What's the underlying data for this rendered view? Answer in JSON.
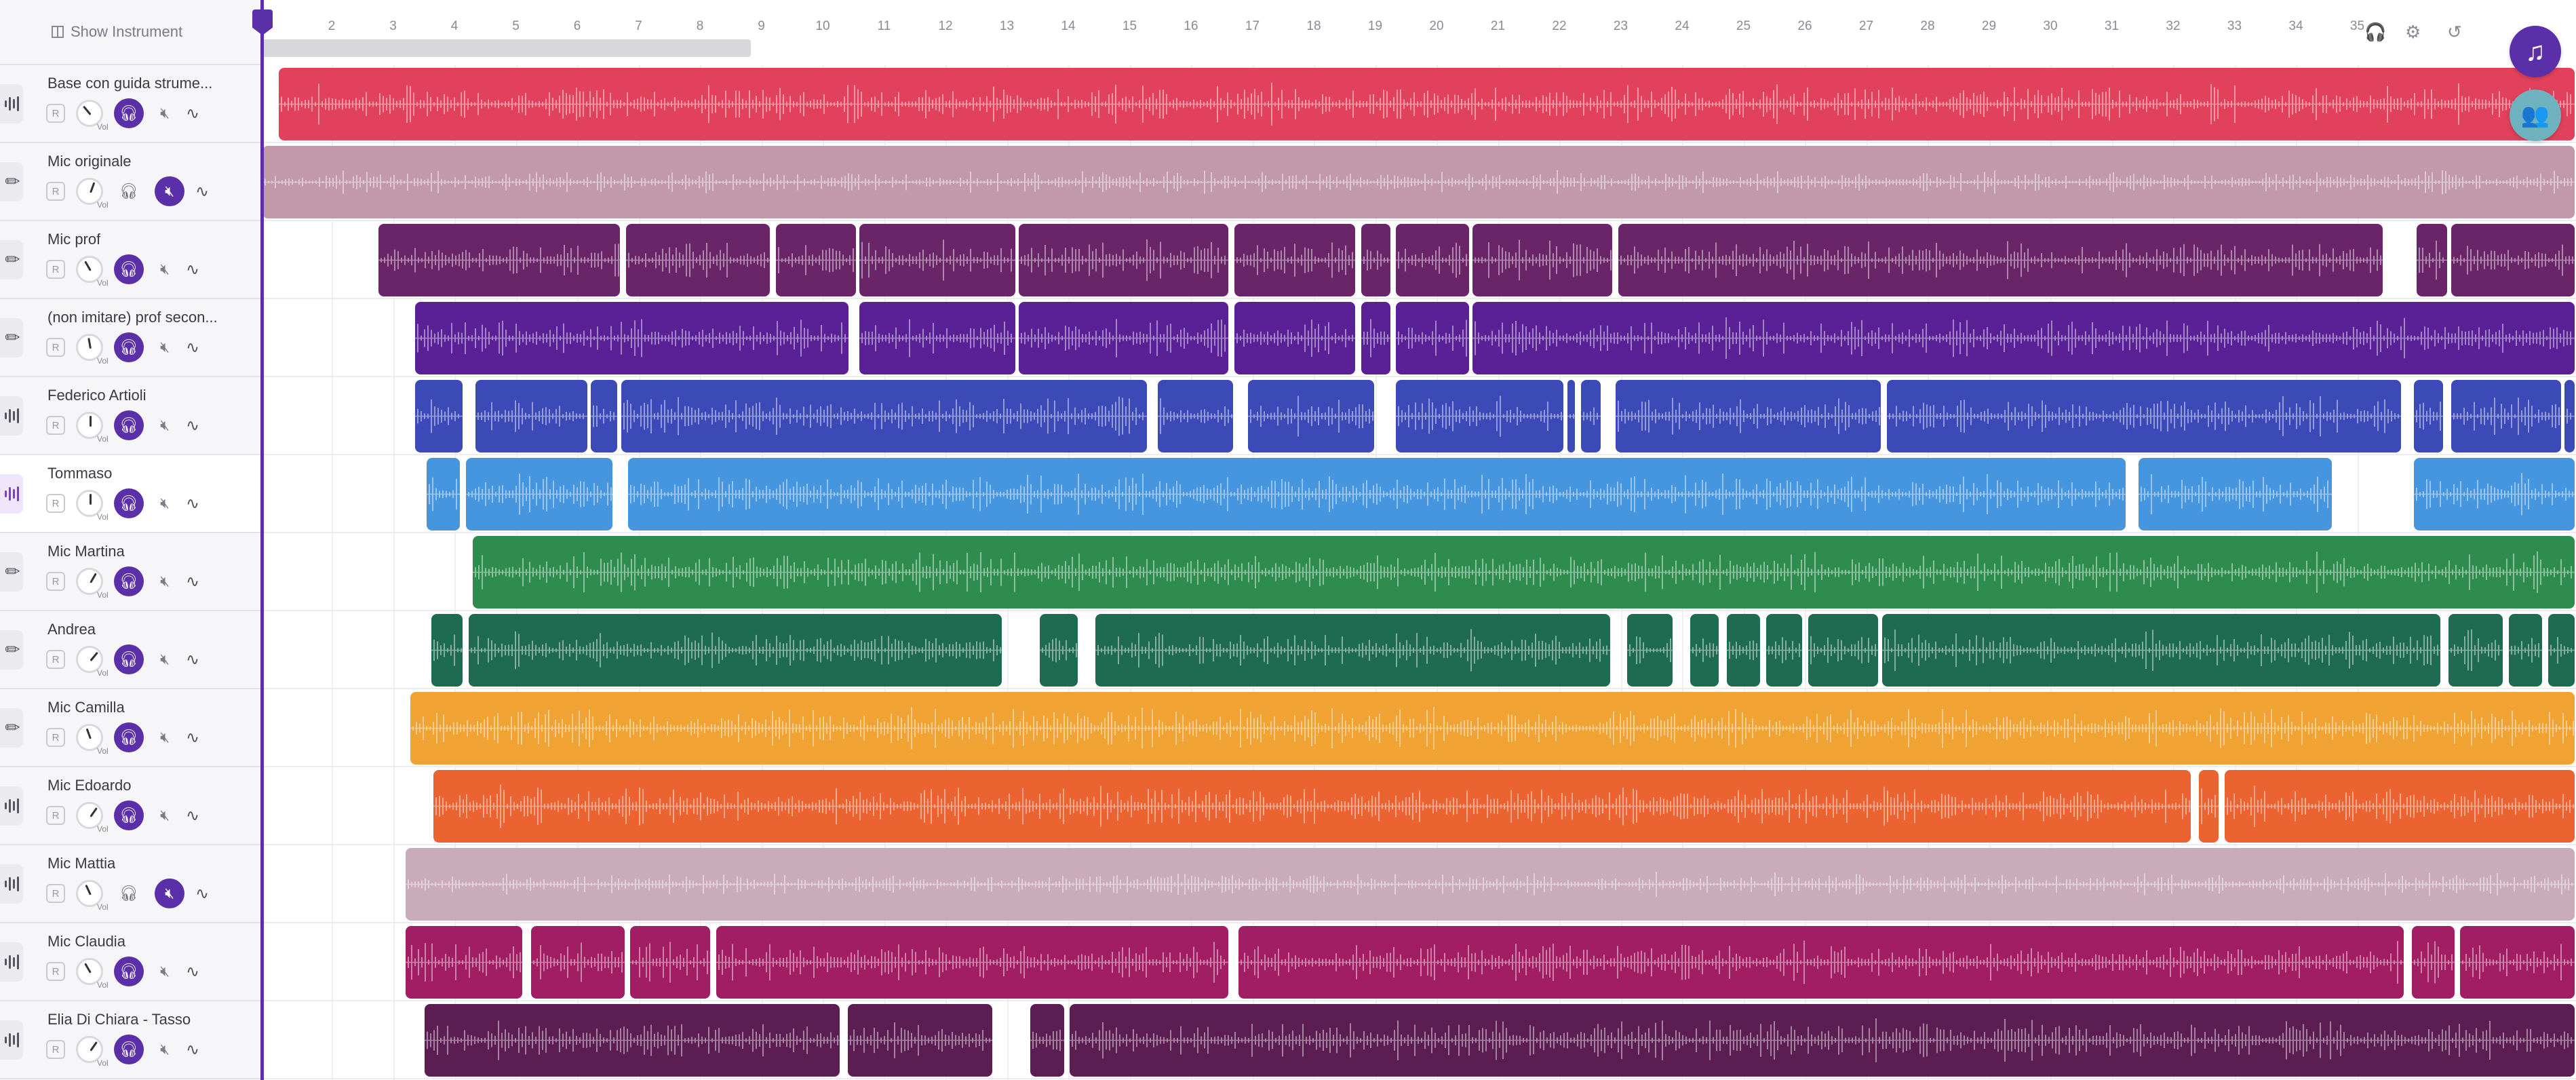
{
  "sidebar": {
    "show_instrument_label": "Show Instrument"
  },
  "ruler": {
    "ticks": [
      "2",
      "3",
      "4",
      "5",
      "6",
      "7",
      "8",
      "9",
      "10",
      "11",
      "12",
      "13",
      "14",
      "15",
      "16",
      "17",
      "18",
      "19",
      "20",
      "21",
      "22",
      "23",
      "24",
      "25",
      "26",
      "27",
      "28",
      "29",
      "30",
      "31",
      "32",
      "33",
      "34",
      "35"
    ]
  },
  "icons": {
    "headphones": "headphones-icon",
    "settings": "gear-icon",
    "undo": "undo-icon",
    "music": "music-note-icon",
    "collab": "collaborators-icon"
  },
  "tracks": [
    {
      "name": "Base con guida strume...",
      "type": "audio",
      "record": "R",
      "vol_label": "Vol",
      "solo": true,
      "muted": false,
      "color": "#e2415b",
      "clips": [
        [
          0.007,
          1
        ]
      ]
    },
    {
      "name": "Mic originale",
      "type": "mic",
      "record": "R",
      "vol_label": "Vol",
      "solo": false,
      "muted": true,
      "color": "#c299a9",
      "clips": [
        [
          0,
          1
        ]
      ]
    },
    {
      "name": "Mic prof",
      "type": "mic",
      "record": "R",
      "vol_label": "Vol",
      "solo": true,
      "muted": false,
      "color": "#6a2468",
      "clips": [
        [
          0.05,
          0.155
        ],
        [
          0.157,
          0.22
        ],
        [
          0.222,
          0.257
        ],
        [
          0.258,
          0.326
        ],
        [
          0.327,
          0.418
        ],
        [
          0.42,
          0.473
        ],
        [
          0.475,
          0.488
        ],
        [
          0.49,
          0.522
        ],
        [
          0.523,
          0.584
        ],
        [
          0.586,
          0.917
        ],
        [
          0.931,
          0.945
        ],
        [
          0.946,
          1
        ]
      ]
    },
    {
      "name": "(non imitare) prof secon...",
      "type": "mic",
      "record": "R",
      "vol_label": "Vol",
      "solo": true,
      "muted": false,
      "color": "#5a2196",
      "clips": [
        [
          0.066,
          0.254
        ],
        [
          0.258,
          0.326
        ],
        [
          0.327,
          0.418
        ],
        [
          0.42,
          0.473
        ],
        [
          0.475,
          0.488
        ],
        [
          0.49,
          0.522
        ],
        [
          0.523,
          1
        ]
      ]
    },
    {
      "name": "Federico Artioli",
      "type": "audio",
      "record": "R",
      "vol_label": "Vol",
      "solo": true,
      "muted": false,
      "color": "#3c4ab8",
      "clips": [
        [
          0.066,
          0.087
        ],
        [
          0.092,
          0.141
        ],
        [
          0.142,
          0.154
        ],
        [
          0.155,
          0.383
        ],
        [
          0.387,
          0.42
        ],
        [
          0.426,
          0.481
        ],
        [
          0.49,
          0.563
        ],
        [
          0.564,
          0.568
        ],
        [
          0.57,
          0.579
        ],
        [
          0.585,
          0.7
        ],
        [
          0.702,
          0.925
        ],
        [
          0.93,
          0.943
        ],
        [
          0.946,
          0.994
        ],
        [
          0.995,
          1
        ]
      ]
    },
    {
      "name": "Tommaso",
      "type": "audio",
      "record": "R",
      "vol_label": "Vol",
      "solo": true,
      "muted": false,
      "color": "#4696df",
      "selected": true,
      "clips": [
        [
          0.071,
          0.086
        ],
        [
          0.088,
          0.152
        ],
        [
          0.158,
          0.806
        ],
        [
          0.811,
          0.895
        ],
        [
          0.93,
          1
        ]
      ]
    },
    {
      "name": "Mic Martina",
      "type": "mic",
      "record": "R",
      "vol_label": "Vol",
      "solo": true,
      "muted": false,
      "color": "#2d8c4e",
      "clips": [
        [
          0.091,
          1
        ]
      ]
    },
    {
      "name": "Andrea",
      "type": "mic",
      "record": "R",
      "vol_label": "Vol",
      "solo": true,
      "muted": false,
      "color": "#1f6b52",
      "clips": [
        [
          0.073,
          0.087
        ],
        [
          0.089,
          0.32
        ],
        [
          0.336,
          0.353
        ],
        [
          0.36,
          0.583
        ],
        [
          0.59,
          0.61
        ],
        [
          0.617,
          0.63
        ],
        [
          0.633,
          0.648
        ],
        [
          0.65,
          0.666
        ],
        [
          0.668,
          0.699
        ],
        [
          0.7,
          0.942
        ],
        [
          0.945,
          0.969
        ],
        [
          0.971,
          0.986
        ],
        [
          0.988,
          1
        ]
      ]
    },
    {
      "name": "Mic Camilla",
      "type": "mic",
      "record": "R",
      "vol_label": "Vol",
      "solo": true,
      "muted": false,
      "color": "#f0a233",
      "clips": [
        [
          0.064,
          1
        ]
      ]
    },
    {
      "name": "Mic Edoardo",
      "type": "audio",
      "record": "R",
      "vol_label": "Vol",
      "solo": true,
      "muted": false,
      "color": "#ea6331",
      "clips": [
        [
          0.074,
          0.834
        ],
        [
          0.837,
          0.846
        ],
        [
          0.848,
          1
        ]
      ]
    },
    {
      "name": "Mic Mattia",
      "type": "audio",
      "record": "R",
      "vol_label": "Vol",
      "solo": false,
      "muted": true,
      "color": "#c9abba",
      "clips": [
        [
          0.062,
          1
        ]
      ]
    },
    {
      "name": "Mic Claudia",
      "type": "audio",
      "record": "R",
      "vol_label": "Vol",
      "solo": true,
      "muted": false,
      "color": "#a11d64",
      "clips": [
        [
          0.062,
          0.113
        ],
        [
          0.116,
          0.157
        ],
        [
          0.159,
          0.194
        ],
        [
          0.196,
          0.418
        ],
        [
          0.422,
          0.926
        ],
        [
          0.929,
          0.948
        ],
        [
          0.95,
          1
        ]
      ]
    },
    {
      "name": "Elia Di Chiara - Tasso",
      "type": "audio",
      "record": "R",
      "vol_label": "Vol",
      "solo": true,
      "muted": false,
      "color": "#5b1d52",
      "clips": [
        [
          0.07,
          0.25
        ],
        [
          0.253,
          0.316
        ],
        [
          0.332,
          0.347
        ],
        [
          0.349,
          1
        ]
      ]
    }
  ]
}
